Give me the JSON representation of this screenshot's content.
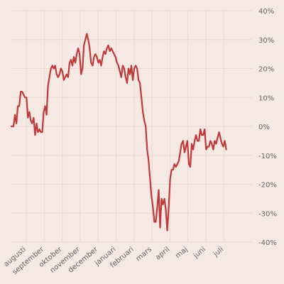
{
  "chart_data": {
    "type": "line",
    "title": "",
    "xlabel": "",
    "ylabel": "",
    "x_ticks": [
      "augusti",
      "september",
      "oktober",
      "november",
      "december",
      "januari",
      "februari",
      "mars",
      "april",
      "maj",
      "juni",
      "juli"
    ],
    "y_ticks": [
      "40%",
      "30%",
      "20%",
      "10%",
      "0%",
      "-10%",
      "-20%",
      "-30%",
      "-40%"
    ],
    "y_tick_values": [
      40,
      30,
      20,
      10,
      0,
      -10,
      -20,
      -30,
      -40
    ],
    "ylim": [
      -40,
      40
    ],
    "grid": true,
    "series": [
      {
        "color": "#c0393b",
        "x": [
          0,
          0.12,
          0.2,
          0.28,
          0.36,
          0.44,
          0.52,
          0.6,
          0.68,
          0.76,
          0.84,
          0.92,
          1,
          1.08,
          1.16,
          1.24,
          1.32,
          1.4,
          1.48,
          1.56,
          1.64,
          1.72,
          1.8,
          1.88,
          1.96,
          2.04,
          2.12,
          2.2,
          2.28,
          2.36,
          2.44,
          2.52,
          2.6,
          2.68,
          2.76,
          2.84,
          2.92,
          3,
          3.08,
          3.16,
          3.24,
          3.32,
          3.4,
          3.48,
          3.56,
          3.64,
          3.72,
          3.8,
          3.88,
          3.96,
          4.04,
          4.12,
          4.2,
          4.28,
          4.36,
          4.44,
          4.52,
          4.6,
          4.68,
          4.76,
          4.84,
          4.92,
          5,
          5.08,
          5.16,
          5.24,
          5.32,
          5.4,
          5.48,
          5.56,
          5.64,
          5.72,
          5.8,
          5.88,
          5.96,
          6.04,
          6.12,
          6.2,
          6.28,
          6.36,
          6.44,
          6.52,
          6.6,
          6.68,
          6.76,
          6.84,
          6.92,
          7,
          7.08,
          7.16,
          7.24,
          7.32,
          7.4,
          7.48,
          7.56,
          7.64,
          7.72,
          7.8,
          7.88,
          7.96,
          8.04,
          8.12,
          8.2,
          8.28,
          8.36,
          8.44,
          8.52,
          8.6,
          8.68,
          8.76,
          8.84,
          8.92,
          9,
          9.08,
          9.16,
          9.24,
          9.32,
          9.4,
          9.48,
          9.56,
          9.64,
          9.72,
          9.8,
          9.88,
          9.96,
          10.04,
          10.12,
          10.2,
          10.28,
          10.36,
          10.44,
          10.52,
          10.6,
          10.68,
          10.76,
          10.84,
          10.92,
          11,
          11.08,
          11.16,
          11.24,
          11.32,
          11.4,
          11.48,
          11.56,
          11.64,
          11.72,
          11.8,
          11.88,
          11.96
        ],
        "values": [
          0,
          0,
          4,
          1,
          7,
          7,
          12,
          12,
          11,
          10,
          10,
          3,
          5,
          2,
          1,
          3,
          -3,
          1,
          -2,
          -1,
          -2,
          -2,
          5,
          7,
          4,
          14,
          17,
          20,
          21,
          20,
          21,
          18,
          17,
          18,
          20,
          19,
          16,
          17,
          18,
          17,
          22,
          23,
          21,
          24,
          22,
          25,
          27,
          25,
          18,
          20,
          28,
          30,
          32,
          30,
          27,
          22,
          21,
          24,
          25,
          24,
          22,
          23,
          21,
          24,
          26,
          25,
          27,
          28,
          26,
          27,
          26,
          25,
          24,
          22,
          21,
          19,
          17,
          21,
          20,
          17,
          15,
          20,
          18,
          21,
          16,
          20,
          21,
          20,
          16,
          15,
          10,
          5,
          2,
          0,
          -8,
          -12,
          -18,
          -24,
          -28,
          -33,
          -33,
          -28,
          -22,
          -35,
          -25,
          -27,
          -25,
          -29,
          -36,
          -28,
          -18,
          -15,
          -15,
          -13,
          -14,
          -13,
          -12,
          -9,
          -6,
          -5,
          -9,
          -7,
          -5,
          -13,
          -14,
          -6,
          -8,
          -5,
          -3,
          -5,
          -5,
          -1,
          -3,
          -3,
          -1,
          -8,
          -7,
          -7,
          -5,
          -6,
          -8,
          -5,
          -6,
          -4,
          -2,
          -4,
          -6,
          -7,
          -5,
          -8
        ]
      }
    ]
  }
}
